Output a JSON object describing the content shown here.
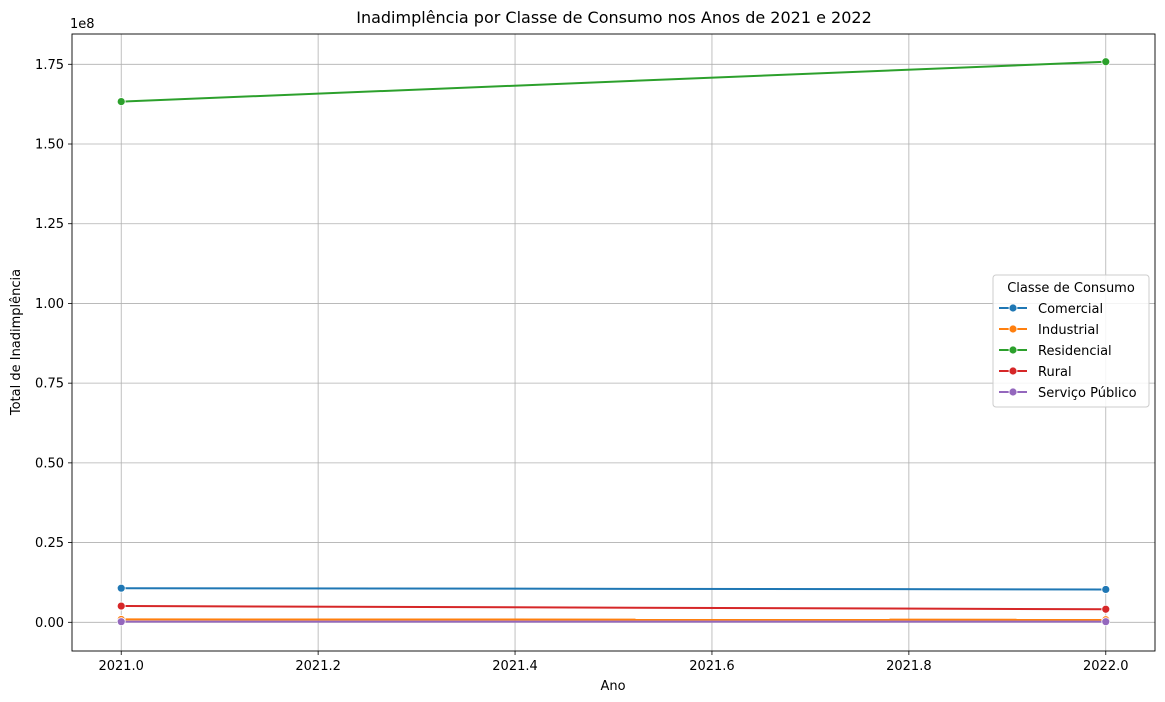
{
  "chart_data": {
    "type": "line",
    "title": "Inadimplência por Classe de Consumo nos Anos de 2021 e 2022",
    "xlabel": "Ano",
    "ylabel": "Total de Inadimplência",
    "y_offset_label": "1e8",
    "xlim": [
      2020.95,
      2022.05
    ],
    "ylim": [
      -9000000,
      184500000
    ],
    "x_ticks": [
      2021.0,
      2021.2,
      2021.4,
      2021.6,
      2021.8,
      2022.0
    ],
    "x_tick_labels": [
      "2021.0",
      "2021.2",
      "2021.4",
      "2021.6",
      "2021.8",
      "2022.0"
    ],
    "y_ticks": [
      0,
      25000000,
      50000000,
      75000000,
      100000000,
      125000000,
      150000000,
      175000000
    ],
    "y_tick_labels": [
      "0.00",
      "0.25",
      "0.50",
      "0.75",
      "1.00",
      "1.25",
      "1.50",
      "1.75"
    ],
    "grid": true,
    "legend": {
      "title": "Classe de Consumo",
      "placement": "center-right"
    },
    "x": [
      2021,
      2022
    ],
    "series": [
      {
        "name": "Comercial",
        "color": "#1f77b4",
        "values": [
          10700000,
          10300000
        ]
      },
      {
        "name": "Industrial",
        "color": "#ff7f0e",
        "values": [
          900000,
          800000
        ]
      },
      {
        "name": "Residencial",
        "color": "#2ca02c",
        "values": [
          163300000,
          175800000
        ]
      },
      {
        "name": "Rural",
        "color": "#d62728",
        "values": [
          5100000,
          4100000
        ]
      },
      {
        "name": "Serviço Público",
        "color": "#9467bd",
        "values": [
          200000,
          200000
        ]
      }
    ]
  }
}
